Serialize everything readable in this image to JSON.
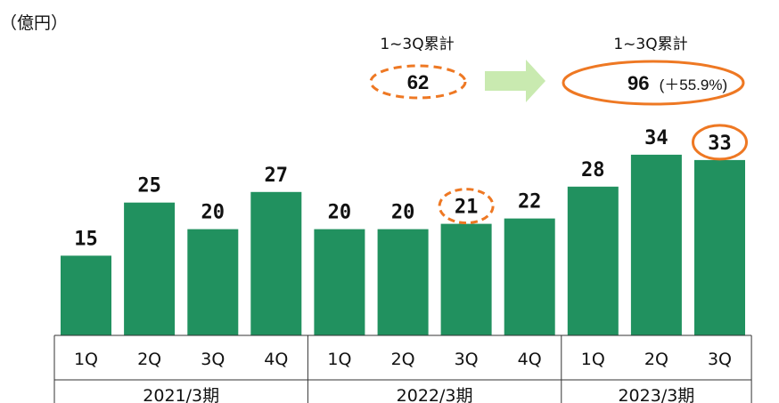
{
  "unit_label": "（億円）",
  "summary": {
    "previous": {
      "label": "1~3Q累計",
      "value": "62"
    },
    "current": {
      "label": "1~3Q累計",
      "value": "96",
      "change": "(＋55.9%)"
    }
  },
  "colors": {
    "bar": "#21915f",
    "highlight": "#ee7823",
    "arrow": "#c9eab0",
    "axis": "#333333"
  },
  "chart_data": {
    "type": "bar",
    "categories": [
      "1Q",
      "2Q",
      "3Q",
      "4Q",
      "1Q",
      "2Q",
      "3Q",
      "4Q",
      "1Q",
      "2Q",
      "3Q"
    ],
    "groups": [
      {
        "label": "2021/3期",
        "count": 4
      },
      {
        "label": "2022/3期",
        "count": 4
      },
      {
        "label": "2023/3期",
        "count": 3
      }
    ],
    "values": [
      15,
      25,
      20,
      27,
      20,
      20,
      21,
      22,
      28,
      34,
      33
    ],
    "data_labels": [
      "15",
      "25",
      "20",
      "27",
      "20",
      "20",
      "21",
      "22",
      "28",
      "34",
      "33"
    ],
    "highlighted": [
      {
        "index": 6,
        "style": "dashed"
      },
      {
        "index": 10,
        "style": "solid"
      }
    ],
    "ylim": [
      0,
      36
    ],
    "grid": false,
    "legend": "none"
  }
}
